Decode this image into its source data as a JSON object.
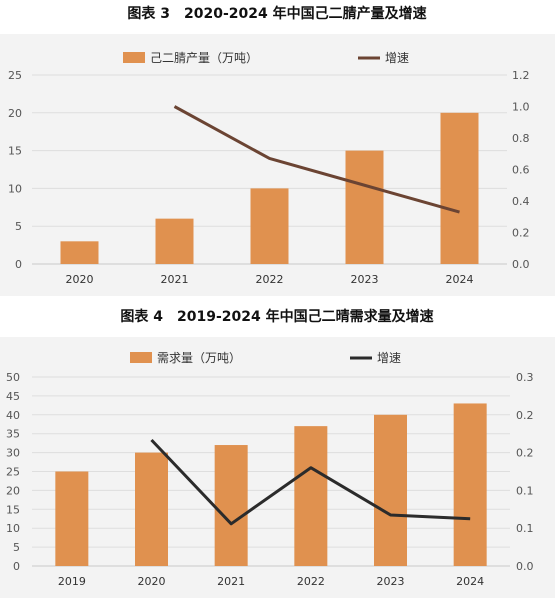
{
  "chart_data": [
    {
      "type": "bar",
      "title": "图表 3　2020-2024 年中国己二腈产量及增速",
      "categories": [
        "2020",
        "2021",
        "2022",
        "2023",
        "2024"
      ],
      "series": [
        {
          "name": "己二腈产量（万吨）",
          "type": "bar",
          "axis": "left",
          "values": [
            3,
            6,
            10,
            15,
            20
          ]
        },
        {
          "name": "增速",
          "type": "line",
          "axis": "right",
          "values": [
            null,
            1.0,
            0.67,
            0.5,
            0.33
          ]
        }
      ],
      "ylim_left": [
        0,
        25
      ],
      "yticks_left": [
        "0",
        "5",
        "10",
        "15",
        "20",
        "25"
      ],
      "ylim_right": [
        0,
        1.2
      ],
      "yticks_right": [
        "0.0",
        "0.2",
        "0.4",
        "0.6",
        "0.8",
        "1.0",
        "1.2"
      ],
      "legend": "top",
      "grid": true,
      "colors": {
        "bar": "#e0914f",
        "line": "#6b4433"
      }
    },
    {
      "type": "bar",
      "title": "图表 4　2019-2024 年中国己二晴需求量及增速",
      "categories": [
        "2019",
        "2020",
        "2021",
        "2022",
        "2023",
        "2024"
      ],
      "series": [
        {
          "name": "需求量（万吨）",
          "type": "bar",
          "axis": "left",
          "values": [
            25,
            30,
            32,
            37,
            40,
            43
          ]
        },
        {
          "name": "增速",
          "type": "line",
          "axis": "right",
          "values": [
            null,
            0.2,
            0.067,
            0.156,
            0.081,
            0.075
          ]
        }
      ],
      "ylim_left": [
        0,
        50
      ],
      "yticks_left": [
        "0",
        "5",
        "10",
        "15",
        "20",
        "25",
        "30",
        "35",
        "40",
        "45",
        "50"
      ],
      "ylim_right": [
        0,
        0.3
      ],
      "yticks_right": [
        "0.0",
        "0.1",
        "0.1",
        "0.2",
        "0.2",
        "0.3"
      ],
      "legend": "top",
      "grid": true,
      "colors": {
        "bar": "#e0914f",
        "line": "#2b2b2b"
      }
    }
  ]
}
